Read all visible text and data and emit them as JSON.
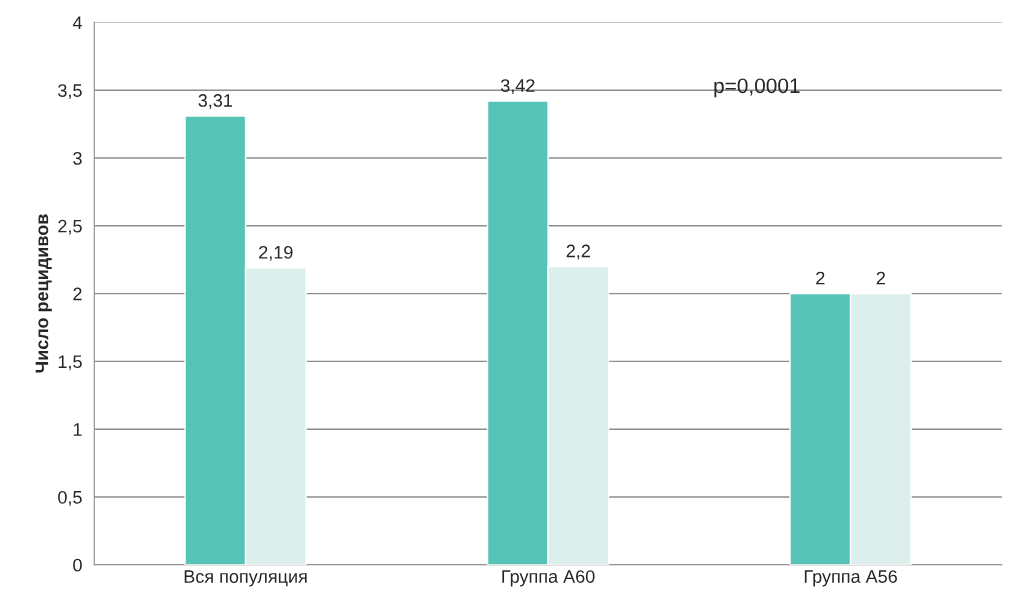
{
  "chart_data": {
    "type": "bar",
    "ylabel": "Число рецидивов",
    "categories": [
      "Вся популяция",
      "Группа А60",
      "Группа А56"
    ],
    "series": [
      {
        "color": "#56c3b7",
        "values": [
          3.31,
          3.42,
          2
        ],
        "value_labels": [
          "3,31",
          "3,42",
          "2"
        ]
      },
      {
        "color": "#dcefec",
        "values": [
          2.19,
          2.2,
          2
        ],
        "value_labels": [
          "2,19",
          "2,2",
          "2"
        ]
      }
    ],
    "ylim": [
      0,
      4
    ],
    "yticks": [
      0,
      {
        "value": 0.5,
        "label": "0,5"
      },
      1,
      {
        "value": 1.5,
        "label": "1,5"
      },
      2,
      {
        "value": 2.5,
        "label": "2,5"
      },
      3,
      {
        "value": 3.5,
        "label": "3,5"
      },
      4
    ],
    "grid": "y",
    "legend": false,
    "annotations": [
      "p=0,0001"
    ]
  }
}
